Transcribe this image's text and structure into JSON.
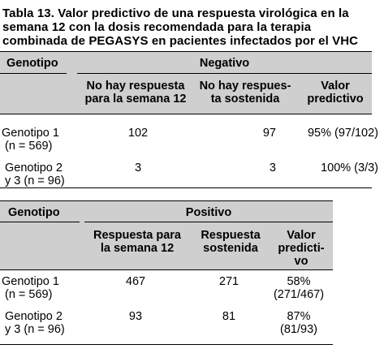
{
  "caption": {
    "lines": [
      "Tabla 13. Valor predictivo de una respuesta virológica en la",
      "semana 12 con la dosis recomendada para la terapia",
      "combinada de PEGASYS en pacientes infectados por el VHC"
    ]
  },
  "table_negative": {
    "genotype_header": "Genotipo",
    "group_header": "Negativo",
    "columns": [
      {
        "lines": [
          "No hay respuesta",
          "para la semana 12"
        ]
      },
      {
        "lines": [
          "No hay respues-",
          "ta sostenida"
        ]
      },
      {
        "lines": [
          "Valor",
          "predictivo"
        ]
      }
    ],
    "rows": [
      {
        "genotype": [
          "Genotipo 1",
          "(n = 569)"
        ],
        "values": [
          [
            "102"
          ],
          [
            "97"
          ],
          [
            "95% (97/102)"
          ]
        ]
      },
      {
        "genotype": [
          "Genotipo 2",
          "y 3 (n = 96)"
        ],
        "values": [
          [
            "3"
          ],
          [
            "3"
          ],
          [
            "100% (3/3)"
          ]
        ]
      }
    ]
  },
  "table_positive": {
    "genotype_header": "Genotipo",
    "group_header": "Positivo",
    "columns": [
      {
        "lines": [
          "Respuesta para",
          "la semana 12"
        ]
      },
      {
        "lines": [
          "Respuesta",
          "sostenida"
        ]
      },
      {
        "lines": [
          "Valor",
          "predicti-",
          "vo"
        ]
      }
    ],
    "rows": [
      {
        "genotype": [
          "Genotipo 1",
          "(n = 569)"
        ],
        "values": [
          [
            "467"
          ],
          [
            "271"
          ],
          [
            "58%",
            "(271/467)"
          ]
        ]
      },
      {
        "genotype": [
          "Genotipo 2",
          "y 3 (n = 96)"
        ],
        "values": [
          [
            "93"
          ],
          [
            "81"
          ],
          [
            "87%",
            "(81/93)"
          ]
        ]
      }
    ]
  },
  "colors": {
    "header_band": "#cfcfcf",
    "text": "#000000",
    "rule": "#000000"
  }
}
